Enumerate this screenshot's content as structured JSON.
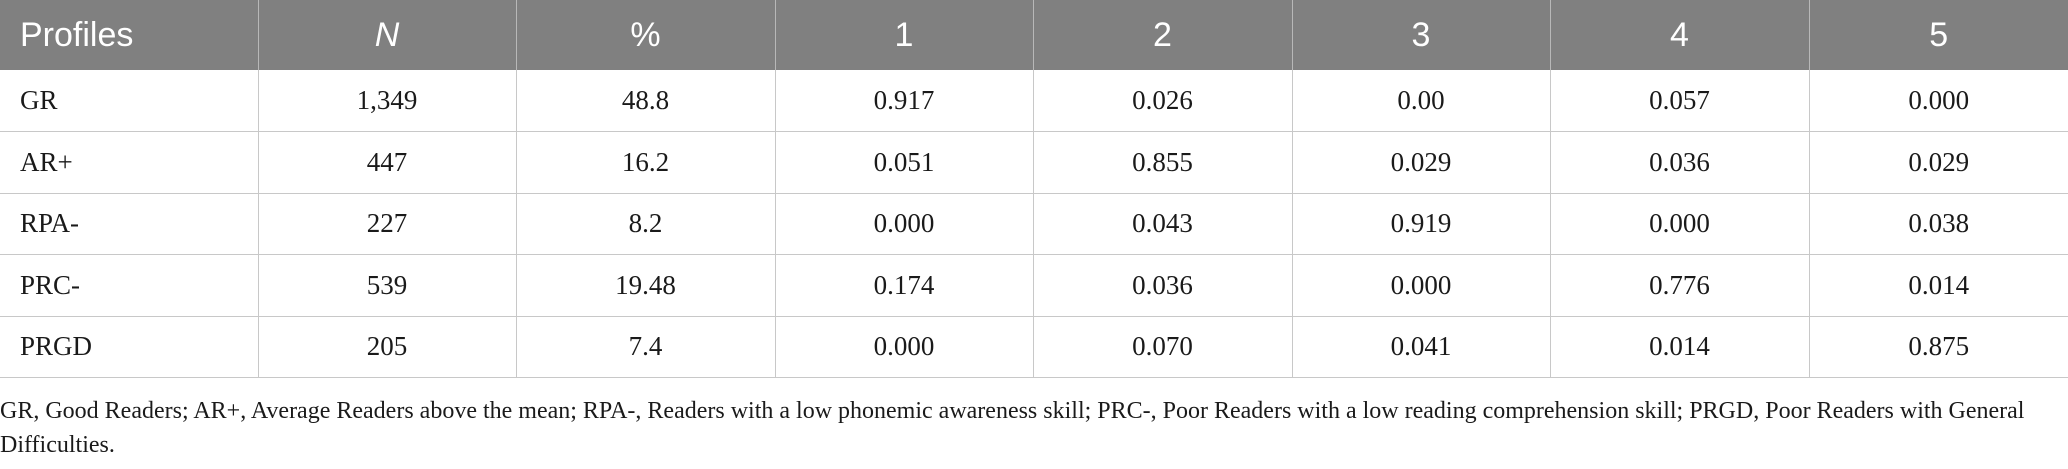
{
  "table": {
    "headers": [
      "Profiles",
      "N",
      "%",
      "1",
      "2",
      "3",
      "4",
      "5"
    ],
    "rows": [
      [
        "GR",
        "1,349",
        "48.8",
        "0.917",
        "0.026",
        "0.00",
        "0.057",
        "0.000"
      ],
      [
        "AR+",
        "447",
        "16.2",
        "0.051",
        "0.855",
        "0.029",
        "0.036",
        "0.029"
      ],
      [
        "RPA-",
        "227",
        "8.2",
        "0.000",
        "0.043",
        "0.919",
        "0.000",
        "0.038"
      ],
      [
        "PRC-",
        "539",
        "19.48",
        "0.174",
        "0.036",
        "0.000",
        "0.776",
        "0.014"
      ],
      [
        "PRGD",
        "205",
        "7.4",
        "0.000",
        "0.070",
        "0.041",
        "0.014",
        "0.875"
      ]
    ]
  },
  "footnote": "GR, Good Readers; AR+, Average Readers above the mean; RPA-, Readers with a low phonemic awareness skill; PRC-, Poor Readers with a low reading comprehension skill; PRGD, Poor Readers with General Difficulties.",
  "colors": {
    "header_bg": "#808080",
    "header_text": "#ffffff",
    "border": "#c8c8c8"
  }
}
